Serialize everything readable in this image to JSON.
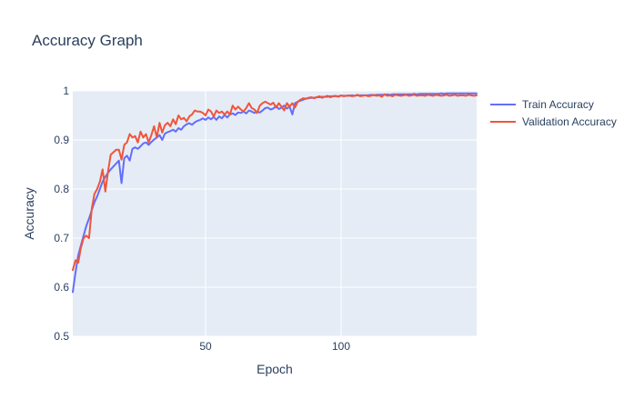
{
  "chart_data": {
    "type": "line",
    "title": "Accuracy Graph",
    "xlabel": "Epoch",
    "ylabel": "Accuracy",
    "xlim": [
      1,
      150
    ],
    "ylim": [
      0.5,
      1.0
    ],
    "x_ticks": [
      50,
      100
    ],
    "y_ticks": [
      0.5,
      0.6,
      0.7,
      0.8,
      0.9,
      1.0
    ],
    "x_tick_labels": [
      "50",
      "100"
    ],
    "y_tick_labels": [
      "0.5",
      "0.6",
      "0.7",
      "0.8",
      "0.9",
      "1"
    ],
    "grid": true,
    "legend_position": "right",
    "background_color": "#e5ecf6",
    "series": [
      {
        "name": "Train Accuracy",
        "color": "#636efa",
        "x": [
          1,
          2,
          3,
          4,
          5,
          6,
          7,
          8,
          9,
          10,
          11,
          12,
          13,
          14,
          15,
          16,
          17,
          18,
          19,
          20,
          21,
          22,
          23,
          24,
          25,
          26,
          27,
          28,
          29,
          30,
          31,
          32,
          33,
          34,
          35,
          36,
          37,
          38,
          39,
          40,
          41,
          42,
          43,
          44,
          45,
          46,
          47,
          48,
          49,
          50,
          51,
          52,
          53,
          54,
          55,
          56,
          57,
          58,
          59,
          60,
          61,
          62,
          63,
          64,
          65,
          66,
          67,
          68,
          69,
          70,
          71,
          72,
          73,
          74,
          75,
          76,
          77,
          78,
          79,
          80,
          81,
          82,
          83,
          84,
          85,
          86,
          87,
          88,
          89,
          90,
          91,
          92,
          93,
          94,
          95,
          96,
          97,
          98,
          99,
          100,
          101,
          102,
          103,
          104,
          105,
          106,
          107,
          108,
          109,
          110,
          111,
          112,
          113,
          114,
          115,
          116,
          117,
          118,
          119,
          120,
          121,
          122,
          123,
          124,
          125,
          126,
          127,
          128,
          129,
          130,
          131,
          132,
          133,
          134,
          135,
          136,
          137,
          138,
          139,
          140,
          141,
          142,
          143,
          144,
          145,
          146,
          147,
          148,
          149,
          150
        ],
        "y": [
          0.59,
          0.63,
          0.665,
          0.685,
          0.705,
          0.725,
          0.74,
          0.757,
          0.773,
          0.785,
          0.8,
          0.815,
          0.825,
          0.833,
          0.84,
          0.846,
          0.852,
          0.858,
          0.812,
          0.863,
          0.868,
          0.858,
          0.882,
          0.885,
          0.882,
          0.887,
          0.893,
          0.895,
          0.89,
          0.896,
          0.901,
          0.905,
          0.91,
          0.9,
          0.913,
          0.916,
          0.918,
          0.921,
          0.917,
          0.924,
          0.921,
          0.928,
          0.932,
          0.934,
          0.931,
          0.936,
          0.939,
          0.941,
          0.944,
          0.941,
          0.946,
          0.942,
          0.947,
          0.941,
          0.948,
          0.944,
          0.951,
          0.946,
          0.952,
          0.954,
          0.951,
          0.956,
          0.955,
          0.958,
          0.954,
          0.96,
          0.958,
          0.955,
          0.958,
          0.956,
          0.96,
          0.965,
          0.966,
          0.962,
          0.964,
          0.969,
          0.963,
          0.966,
          0.97,
          0.964,
          0.968,
          0.952,
          0.975,
          0.978,
          0.98,
          0.982,
          0.984,
          0.985,
          0.986,
          0.986,
          0.987,
          0.987,
          0.988,
          0.988,
          0.988,
          0.989,
          0.989,
          0.989,
          0.989,
          0.99,
          0.99,
          0.99,
          0.99,
          0.991,
          0.99,
          0.991,
          0.991,
          0.991,
          0.991,
          0.991,
          0.992,
          0.991,
          0.992,
          0.992,
          0.992,
          0.992,
          0.993,
          0.992,
          0.993,
          0.993,
          0.993,
          0.993,
          0.993,
          0.993,
          0.993,
          0.993,
          0.994,
          0.993,
          0.994,
          0.994,
          0.994,
          0.994,
          0.994,
          0.994,
          0.994,
          0.994,
          0.995,
          0.994,
          0.995,
          0.995,
          0.995,
          0.995,
          0.995,
          0.995,
          0.995,
          0.995,
          0.995,
          0.995,
          0.995,
          0.995
        ]
      },
      {
        "name": "Validation Accuracy",
        "color": "#ef553b",
        "x": [
          1,
          2,
          3,
          4,
          5,
          6,
          7,
          8,
          9,
          10,
          11,
          12,
          13,
          14,
          15,
          16,
          17,
          18,
          19,
          20,
          21,
          22,
          23,
          24,
          25,
          26,
          27,
          28,
          29,
          30,
          31,
          32,
          33,
          34,
          35,
          36,
          37,
          38,
          39,
          40,
          41,
          42,
          43,
          44,
          45,
          46,
          47,
          48,
          49,
          50,
          51,
          52,
          53,
          54,
          55,
          56,
          57,
          58,
          59,
          60,
          61,
          62,
          63,
          64,
          65,
          66,
          67,
          68,
          69,
          70,
          71,
          72,
          73,
          74,
          75,
          76,
          77,
          78,
          79,
          80,
          81,
          82,
          83,
          84,
          85,
          86,
          87,
          88,
          89,
          90,
          91,
          92,
          93,
          94,
          95,
          96,
          97,
          98,
          99,
          100,
          101,
          102,
          103,
          104,
          105,
          106,
          107,
          108,
          109,
          110,
          111,
          112,
          113,
          114,
          115,
          116,
          117,
          118,
          119,
          120,
          121,
          122,
          123,
          124,
          125,
          126,
          127,
          128,
          129,
          130,
          131,
          132,
          133,
          134,
          135,
          136,
          137,
          138,
          139,
          140,
          141,
          142,
          143,
          144,
          145,
          146,
          147,
          148,
          149,
          150
        ],
        "y": [
          0.635,
          0.655,
          0.65,
          0.68,
          0.7,
          0.705,
          0.7,
          0.76,
          0.79,
          0.8,
          0.815,
          0.84,
          0.795,
          0.835,
          0.87,
          0.875,
          0.88,
          0.88,
          0.86,
          0.89,
          0.895,
          0.912,
          0.905,
          0.908,
          0.895,
          0.917,
          0.905,
          0.912,
          0.895,
          0.91,
          0.928,
          0.905,
          0.935,
          0.915,
          0.93,
          0.935,
          0.928,
          0.942,
          0.932,
          0.95,
          0.942,
          0.945,
          0.938,
          0.948,
          0.952,
          0.96,
          0.958,
          0.958,
          0.955,
          0.95,
          0.962,
          0.958,
          0.948,
          0.96,
          0.955,
          0.958,
          0.952,
          0.958,
          0.952,
          0.97,
          0.962,
          0.968,
          0.962,
          0.958,
          0.965,
          0.975,
          0.965,
          0.962,
          0.955,
          0.97,
          0.975,
          0.978,
          0.975,
          0.972,
          0.976,
          0.966,
          0.975,
          0.968,
          0.96,
          0.975,
          0.968,
          0.975,
          0.966,
          0.978,
          0.982,
          0.985,
          0.984,
          0.986,
          0.987,
          0.985,
          0.987,
          0.989,
          0.986,
          0.988,
          0.99,
          0.987,
          0.989,
          0.99,
          0.988,
          0.991,
          0.989,
          0.99,
          0.991,
          0.989,
          0.99,
          0.992,
          0.989,
          0.99,
          0.991,
          0.989,
          0.99,
          0.992,
          0.99,
          0.991,
          0.988,
          0.993,
          0.99,
          0.991,
          0.989,
          0.992,
          0.991,
          0.99,
          0.991,
          0.992,
          0.99,
          0.991,
          0.992,
          0.99,
          0.991,
          0.991,
          0.99,
          0.992,
          0.991,
          0.99,
          0.992,
          0.991,
          0.99,
          0.991,
          0.992,
          0.99,
          0.991,
          0.992,
          0.99,
          0.991,
          0.991,
          0.99,
          0.992,
          0.991,
          0.99,
          0.991
        ]
      }
    ]
  }
}
